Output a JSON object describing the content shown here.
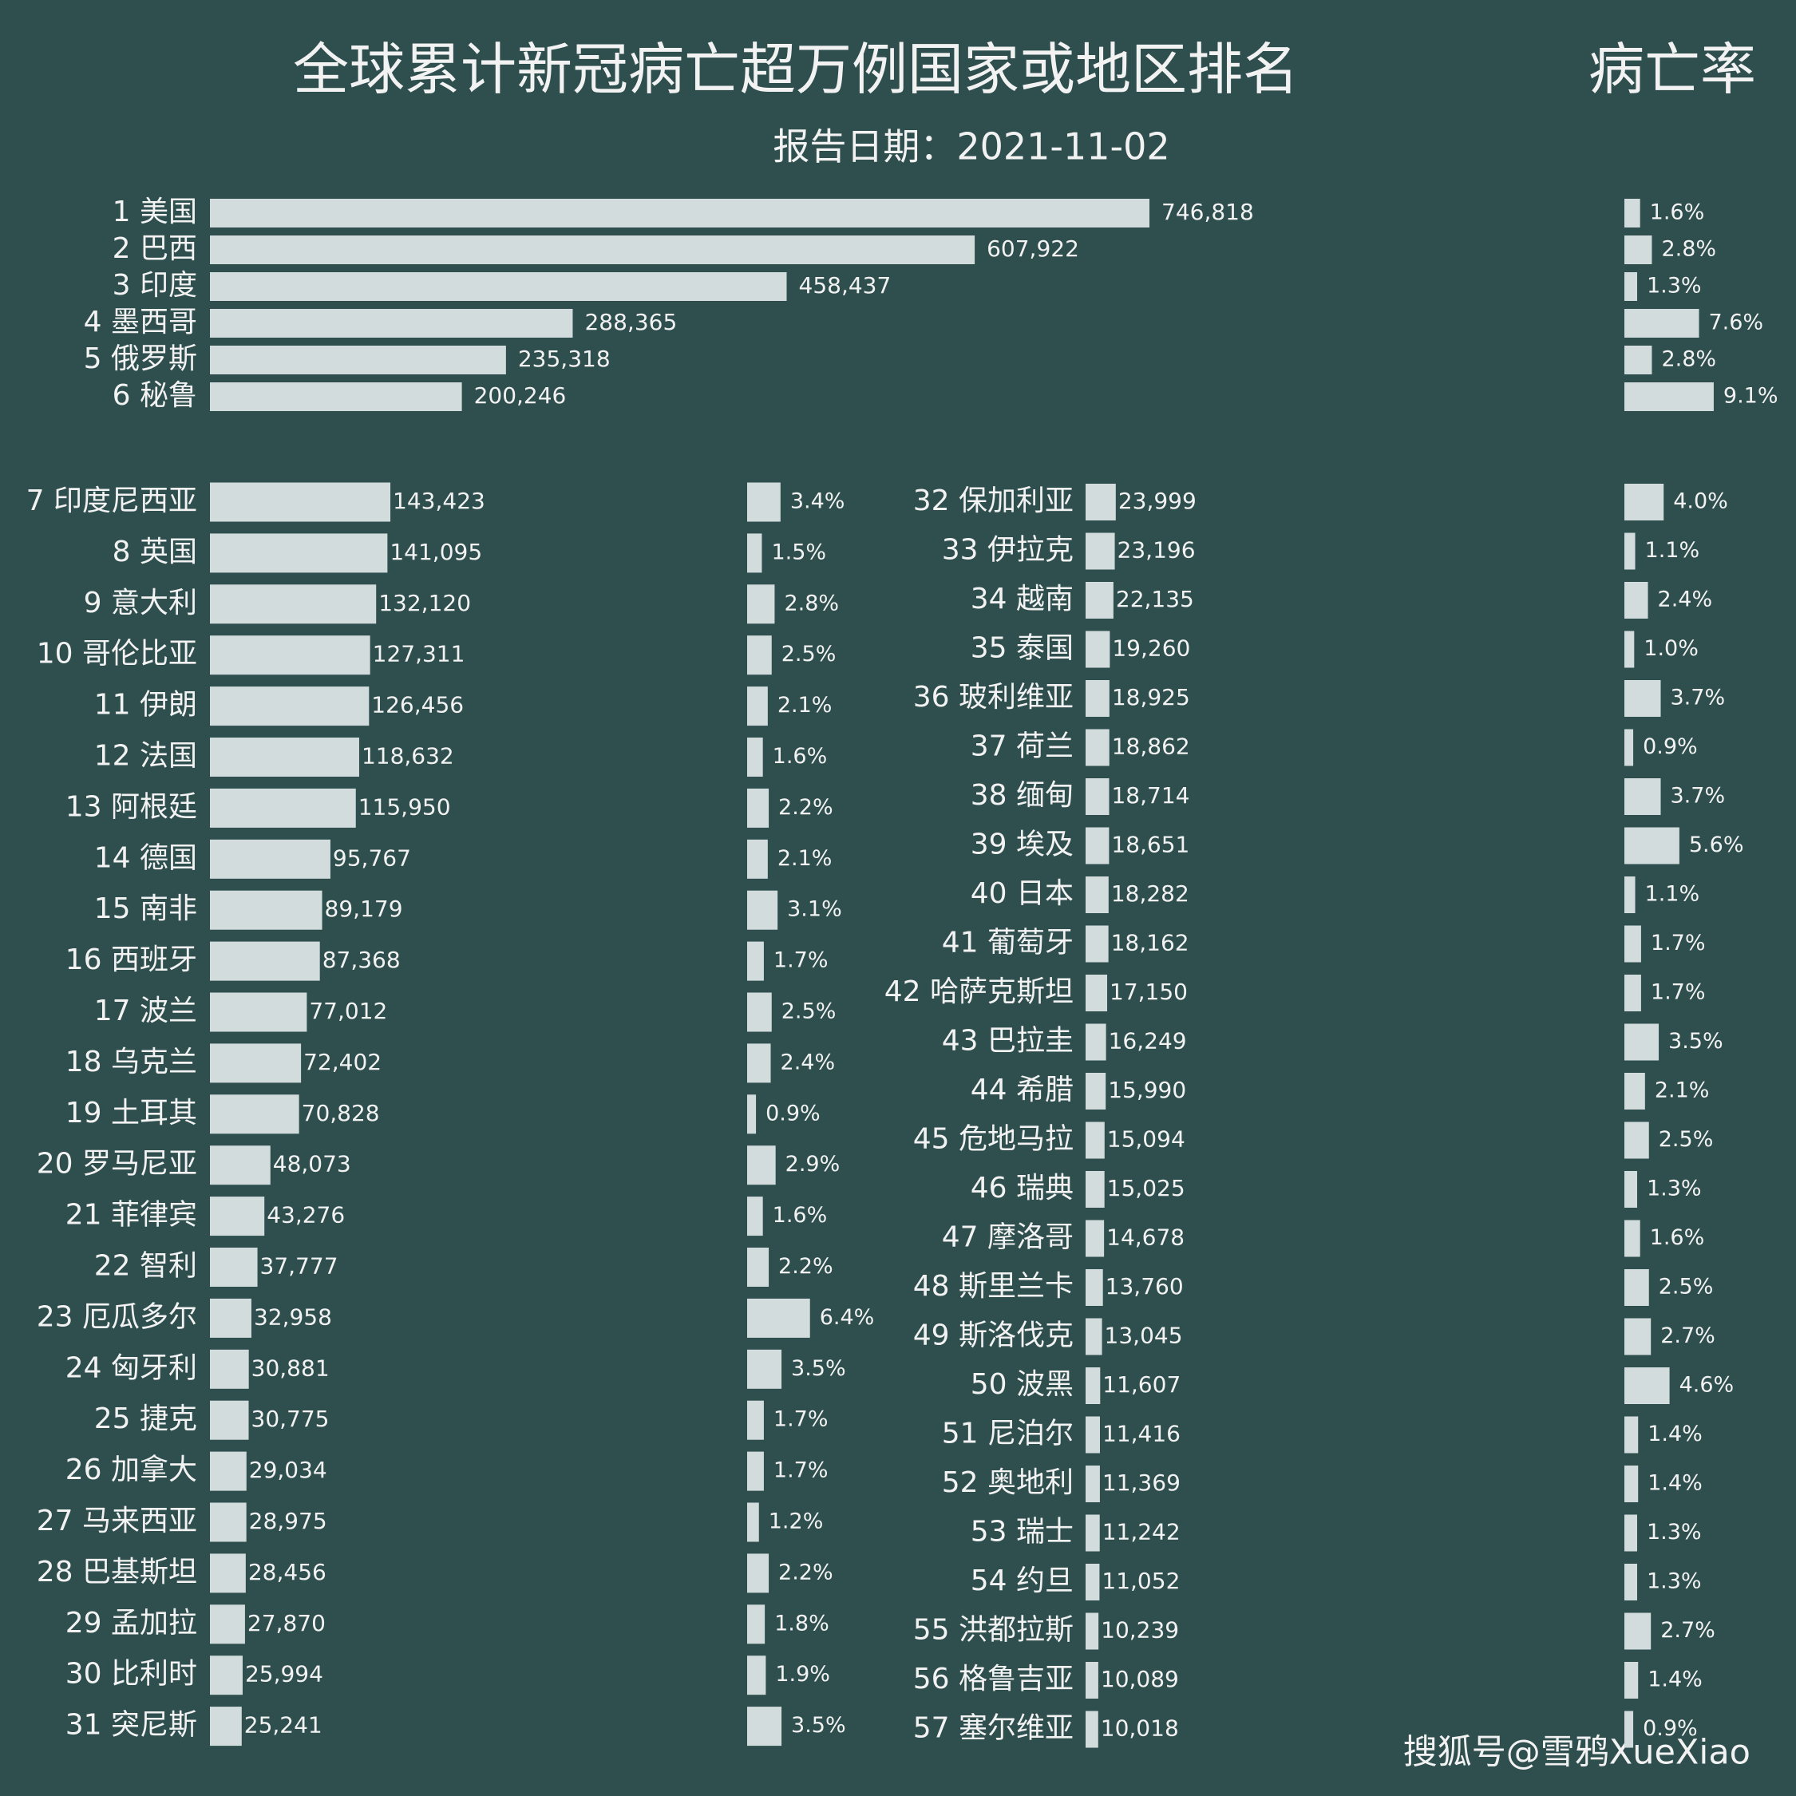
{
  "title": "全球累计新冠病亡超万例国家或地区排名",
  "subtitle": "报告日期：2021-11-02",
  "rate_header": "病亡率",
  "watermark": "搜狐号@雪鸦XueXiao",
  "chart_data": [
    {
      "type": "bar",
      "orientation": "horizontal",
      "color": "#d3dcdc",
      "categories": [
        "1 美国",
        "2 巴西",
        "3 印度",
        "4 墨西哥",
        "5 俄罗斯",
        "6 秘鲁"
      ],
      "values": [
        746818,
        607922,
        458437,
        288365,
        235318,
        200246
      ],
      "value_labels": [
        "746,818",
        "607,922",
        "458,437",
        "288,365",
        "235,318",
        "200,246"
      ],
      "rate_values": [
        1.6,
        2.8,
        1.3,
        7.6,
        2.8,
        9.1
      ],
      "rate_labels": [
        "1.6%",
        "2.8%",
        "1.3%",
        "7.6%",
        "2.8%",
        "9.1%"
      ]
    },
    {
      "type": "bar",
      "orientation": "horizontal",
      "color": "#d3dcdc",
      "categories": [
        "7 印度尼西亚",
        "8 英国",
        "9 意大利",
        "10 哥伦比亚",
        "11 伊朗",
        "12 法国",
        "13 阿根廷",
        "14 德国",
        "15 南非",
        "16 西班牙",
        "17 波兰",
        "18 乌克兰",
        "19 土耳其",
        "20 罗马尼亚",
        "21 菲律宾",
        "22 智利",
        "23 厄瓜多尔",
        "24 匈牙利",
        "25 捷克",
        "26 加拿大",
        "27 马来西亚",
        "28 巴基斯坦",
        "29 孟加拉",
        "30 比利时",
        "31 突尼斯"
      ],
      "values": [
        143423,
        141095,
        132120,
        127311,
        126456,
        118632,
        115950,
        95767,
        89179,
        87368,
        77012,
        72402,
        70828,
        48073,
        43276,
        37777,
        32958,
        30881,
        30775,
        29034,
        28975,
        28456,
        27870,
        25994,
        25241
      ],
      "value_labels": [
        "143,423",
        "141,095",
        "132,120",
        "127,311",
        "126,456",
        "118,632",
        "115,950",
        "95,767",
        "89,179",
        "87,368",
        "77,012",
        "72,402",
        "70,828",
        "48,073",
        "43,276",
        "37,777",
        "32,958",
        "30,881",
        "30,775",
        "29,034",
        "28,975",
        "28,456",
        "27,870",
        "25,994",
        "25,241"
      ],
      "rate_values": [
        3.4,
        1.5,
        2.8,
        2.5,
        2.1,
        1.6,
        2.2,
        2.1,
        3.1,
        1.7,
        2.5,
        2.4,
        0.9,
        2.9,
        1.6,
        2.2,
        6.4,
        3.5,
        1.7,
        1.7,
        1.2,
        2.2,
        1.8,
        1.9,
        3.5
      ],
      "rate_labels": [
        "3.4%",
        "1.5%",
        "2.8%",
        "2.5%",
        "2.1%",
        "1.6%",
        "2.2%",
        "2.1%",
        "3.1%",
        "1.7%",
        "2.5%",
        "2.4%",
        "0.9%",
        "2.9%",
        "1.6%",
        "2.2%",
        "6.4%",
        "3.5%",
        "1.7%",
        "1.7%",
        "1.2%",
        "2.2%",
        "1.8%",
        "1.9%",
        "3.5%"
      ]
    },
    {
      "type": "bar",
      "orientation": "horizontal",
      "color": "#d3dcdc",
      "categories": [
        "32 保加利亚",
        "33 伊拉克",
        "34 越南",
        "35 泰国",
        "36 玻利维亚",
        "37 荷兰",
        "38 缅甸",
        "39 埃及",
        "40 日本",
        "41 葡萄牙",
        "42 哈萨克斯坦",
        "43 巴拉圭",
        "44 希腊",
        "45 危地马拉",
        "46 瑞典",
        "47 摩洛哥",
        "48 斯里兰卡",
        "49 斯洛伐克",
        "50 波黑",
        "51 尼泊尔",
        "52 奥地利",
        "53 瑞士",
        "54 约旦",
        "55 洪都拉斯",
        "56 格鲁吉亚",
        "57 塞尔维亚"
      ],
      "values": [
        23999,
        23196,
        22135,
        19260,
        18925,
        18862,
        18714,
        18651,
        18282,
        18162,
        17150,
        16249,
        15990,
        15094,
        15025,
        14678,
        13760,
        13045,
        11607,
        11416,
        11369,
        11242,
        11052,
        10239,
        10089,
        10018
      ],
      "value_labels": [
        "23,999",
        "23,196",
        "22,135",
        "19,260",
        "18,925",
        "18,862",
        "18,714",
        "18,651",
        "18,282",
        "18,162",
        "17,150",
        "16,249",
        "15,990",
        "15,094",
        "15,025",
        "14,678",
        "13,760",
        "13,045",
        "11,607",
        "11,416",
        "11,369",
        "11,242",
        "11,052",
        "10,239",
        "10,089",
        "10,018"
      ],
      "rate_values": [
        4.0,
        1.1,
        2.4,
        1.0,
        3.7,
        0.9,
        3.7,
        5.6,
        1.1,
        1.7,
        1.7,
        3.5,
        2.1,
        2.5,
        1.3,
        1.6,
        2.5,
        2.7,
        4.6,
        1.4,
        1.4,
        1.3,
        1.3,
        2.7,
        1.4,
        0.9
      ],
      "rate_labels": [
        "4.0%",
        "1.1%",
        "2.4%",
        "1.0%",
        "3.7%",
        "0.9%",
        "3.7%",
        "5.6%",
        "1.1%",
        "1.7%",
        "1.7%",
        "3.5%",
        "2.1%",
        "2.5%",
        "1.3%",
        "1.6%",
        "2.5%",
        "2.7%",
        "4.6%",
        "1.4%",
        "1.4%",
        "1.3%",
        "1.3%",
        "2.7%",
        "1.4%",
        "0.9%"
      ]
    }
  ]
}
